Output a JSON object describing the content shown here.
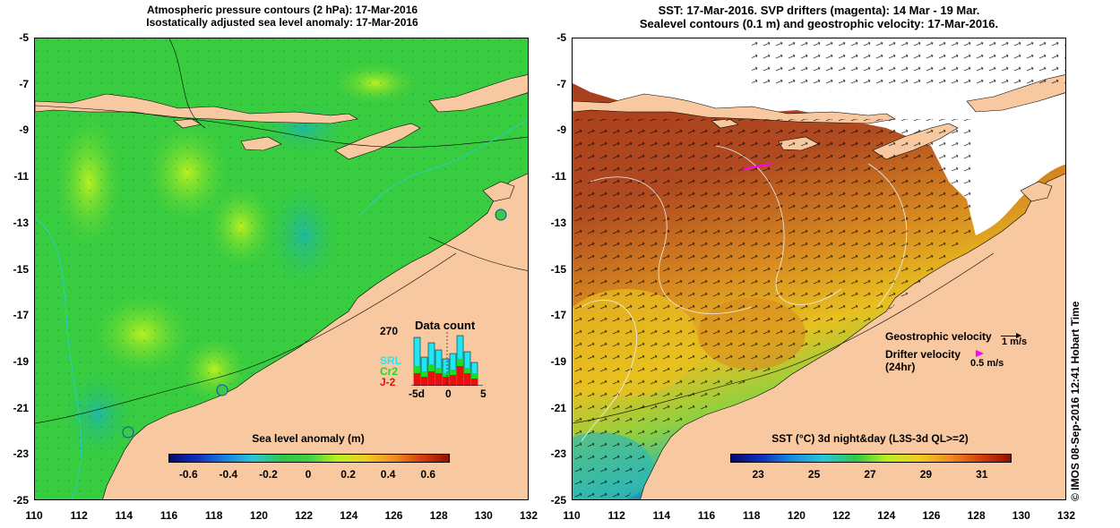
{
  "left_panel": {
    "title_line1": "Atmospheric pressure contours (2 hPa): 17-Mar-2016",
    "title_line2": "Isostatically adjusted sea level anomaly: 17-Mar-2016",
    "colorbar": {
      "title": "Sea level anomaly (m)",
      "ticks": [
        "-0.6",
        "-0.4",
        "-0.2",
        "0",
        "0.2",
        "0.4",
        "0.6"
      ]
    },
    "inset": {
      "title": "Data count",
      "ymax": "270",
      "series": [
        "SRL",
        "Cr2",
        "J-2"
      ],
      "series_colors": [
        "#22e6f0",
        "#22d822",
        "#e61010"
      ],
      "xticks": [
        "-5d",
        "0",
        "5"
      ]
    }
  },
  "right_panel": {
    "title_line1": "SST: 17-Mar-2016. SVP drifters (magenta): 14 Mar - 19 Mar.",
    "title_line2": "Sealevel contours (0.1 m) and geostrophic velocity: 17-Mar-2016.",
    "colorbar": {
      "title": "SST (°C) 3d night&day (L3S-3d QL>=2)",
      "ticks": [
        "23",
        "25",
        "27",
        "29",
        "31"
      ]
    },
    "legend": {
      "geo_label": "Geostrophic velocity",
      "geo_scale": "1 m/s",
      "drifter_label_line1": "Drifter velocity",
      "drifter_label_line2": "(24hr)",
      "drifter_scale": "0.5 m/s",
      "drifter_color": "#ff00ff"
    }
  },
  "axes": {
    "lat_ticks": [
      "-5",
      "-7",
      "-9",
      "-11",
      "-13",
      "-15",
      "-17",
      "-19",
      "-21",
      "-23",
      "-25"
    ],
    "lon_ticks": [
      "110",
      "112",
      "114",
      "116",
      "118",
      "120",
      "122",
      "124",
      "126",
      "128",
      "130",
      "132"
    ]
  },
  "credit": "© IMOS 08-Sep-2016 12:41 Hobart Time",
  "colors": {
    "land": "#f8c8a0",
    "sea_green": "#2cc83c",
    "sst_warm": "#a8401e",
    "sst_cool": "#28a8d8"
  }
}
